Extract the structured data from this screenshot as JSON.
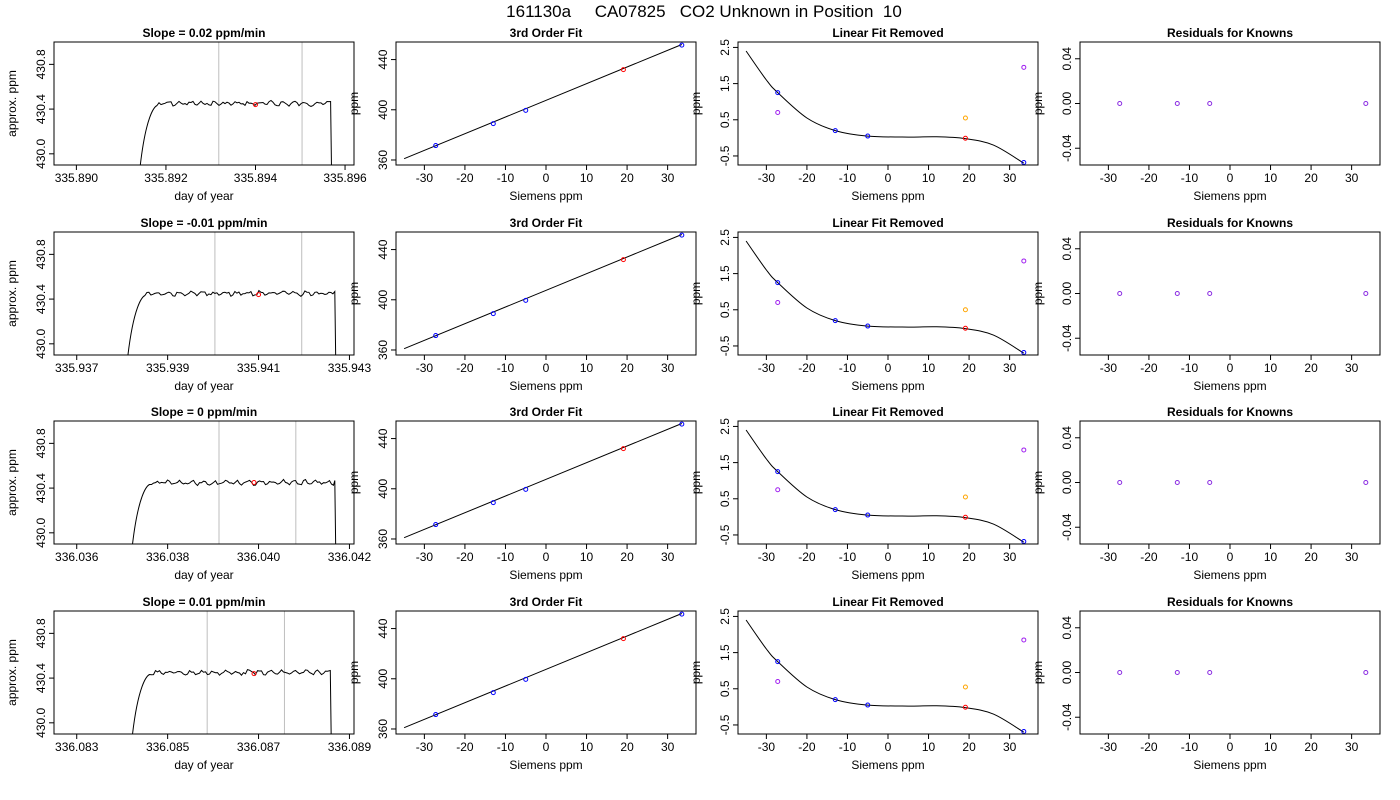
{
  "figure": {
    "title": "161130a     CA07825   CO2 Unknown in Position  10"
  },
  "colors": {
    "trace": "#000000",
    "frame": "#000000",
    "marker_lines": "#bebebe",
    "standard_points": "#0000ff",
    "unknown_point": "#ff0000",
    "linear_residual_points": "#a020f0",
    "unknown_residual_point": "#ffa500",
    "residual_points": "#8a2be2"
  },
  "chart_data": [
    {
      "type": "line",
      "row": 0,
      "col": 0,
      "title": "Slope =  0.02  ppm/min",
      "xlabel": "day of year",
      "ylabel": "approx. ppm",
      "xlim": [
        335.8895,
        335.8962
      ],
      "ylim": [
        429.9,
        431.0
      ],
      "xticks": [
        335.89,
        335.892,
        335.894,
        335.896
      ],
      "xtick_labels": [
        "335.890",
        "335.892",
        "335.894",
        "335.896"
      ],
      "yticks": [
        430.0,
        430.4,
        430.8
      ],
      "ytick_labels": [
        "430.0",
        "430.4",
        "430.8"
      ],
      "trace": {
        "start": 335.8914,
        "rise_end": 335.8918,
        "end": 335.8957,
        "base": 429.8,
        "level": 430.45
      },
      "vlines": [
        335.89318,
        335.89504
      ],
      "marker": {
        "x": 335.894,
        "y": 430.44
      }
    },
    {
      "type": "scatter",
      "row": 0,
      "col": 1,
      "title": "3rd Order Fit",
      "xlabel": "Siemens ppm",
      "ylabel": "ppm",
      "xlim": [
        -37,
        37
      ],
      "ylim": [
        356,
        454
      ],
      "xticks": [
        -30,
        -20,
        -10,
        0,
        10,
        20,
        30
      ],
      "yticks": [
        360,
        400,
        440
      ],
      "line": [
        [
          -35,
          361
        ],
        [
          33.5,
          452
        ]
      ],
      "standards": [
        [
          -27.2,
          371.5
        ],
        [
          -13.0,
          389.0
        ],
        [
          -5.0,
          399.5
        ],
        [
          33.5,
          451.5
        ]
      ],
      "unknown": [
        19.1,
        432.0
      ]
    },
    {
      "type": "scatter",
      "row": 0,
      "col": 2,
      "title": "Linear Fit Removed",
      "xlabel": "Siemens ppm",
      "ylabel": "ppm",
      "xlim": [
        -37,
        37
      ],
      "ylim": [
        -0.75,
        2.65
      ],
      "xticks": [
        -30,
        -20,
        -10,
        0,
        10,
        20,
        30
      ],
      "yticks": [
        -0.5,
        0.5,
        1.5,
        2.5
      ],
      "ytick_labels": [
        "-0.5",
        "0.5",
        "1.5",
        "2.5"
      ],
      "curve": [
        [
          -35,
          2.4
        ],
        [
          -30,
          1.6
        ],
        [
          -27.2,
          1.25
        ],
        [
          -20,
          0.55
        ],
        [
          -13,
          0.2
        ],
        [
          -5,
          0.05
        ],
        [
          5,
          0.02
        ],
        [
          12,
          0.03
        ],
        [
          19,
          -0.02
        ],
        [
          26,
          -0.2
        ],
        [
          33.5,
          -0.7
        ]
      ],
      "standards": [
        [
          -27.2,
          1.25
        ],
        [
          -13.0,
          0.2
        ],
        [
          -5.0,
          0.05
        ],
        [
          33.5,
          -0.68
        ]
      ],
      "unknown": [
        19.1,
        -0.01
      ],
      "linear_residuals": [
        [
          -27.2,
          0.7
        ],
        [
          33.5,
          1.95
        ]
      ],
      "unknown_linear": [
        19.1,
        0.55
      ]
    },
    {
      "type": "scatter",
      "row": 0,
      "col": 3,
      "title": "Residuals for Knowns",
      "xlabel": "Siemens ppm",
      "ylabel": "ppm",
      "xlim": [
        -37,
        37
      ],
      "ylim": [
        -0.055,
        0.055
      ],
      "xticks": [
        -30,
        -20,
        -10,
        0,
        10,
        20,
        30
      ],
      "yticks": [
        -0.04,
        0.0,
        0.04
      ],
      "ytick_labels": [
        "-0.04",
        "0.00",
        "0.04"
      ],
      "residuals": [
        [
          -27.2,
          0.0
        ],
        [
          -13.0,
          0.0
        ],
        [
          -5.0,
          0.0
        ],
        [
          33.5,
          0.0
        ]
      ]
    },
    {
      "type": "line",
      "row": 1,
      "col": 0,
      "title": "Slope =  -0.01  ppm/min",
      "xlabel": "day of year",
      "ylabel": "approx. ppm",
      "xlim": [
        335.9365,
        335.9431
      ],
      "ylim": [
        429.9,
        431.0
      ],
      "xticks": [
        335.937,
        335.939,
        335.941,
        335.943
      ],
      "xtick_labels": [
        "335.937",
        "335.939",
        "335.941",
        "335.943"
      ],
      "yticks": [
        430.0,
        430.4,
        430.8
      ],
      "ytick_labels": [
        "430.0",
        "430.4",
        "430.8"
      ],
      "trace": {
        "start": 335.9381,
        "rise_end": 335.9385,
        "end": 335.9427,
        "base": 429.8,
        "level": 430.45
      },
      "vlines": [
        335.94004,
        335.94195
      ],
      "marker": {
        "x": 335.941,
        "y": 430.44
      }
    },
    {
      "type": "scatter",
      "row": 1,
      "col": 1,
      "title": "3rd Order Fit",
      "xlabel": "Siemens ppm",
      "ylabel": "ppm",
      "xlim": [
        -37,
        37
      ],
      "ylim": [
        356,
        454
      ],
      "xticks": [
        -30,
        -20,
        -10,
        0,
        10,
        20,
        30
      ],
      "yticks": [
        360,
        400,
        440
      ],
      "line": [
        [
          -35,
          361
        ],
        [
          33.5,
          452
        ]
      ],
      "standards": [
        [
          -27.2,
          371.5
        ],
        [
          -13.0,
          389.0
        ],
        [
          -5.0,
          399.5
        ],
        [
          33.5,
          451.5
        ]
      ],
      "unknown": [
        19.1,
        432.0
      ]
    },
    {
      "type": "scatter",
      "row": 1,
      "col": 2,
      "title": "Linear Fit Removed",
      "xlabel": "Siemens ppm",
      "ylabel": "ppm",
      "xlim": [
        -37,
        37
      ],
      "ylim": [
        -0.75,
        2.65
      ],
      "xticks": [
        -30,
        -20,
        -10,
        0,
        10,
        20,
        30
      ],
      "yticks": [
        -0.5,
        0.5,
        1.5,
        2.5
      ],
      "ytick_labels": [
        "-0.5",
        "0.5",
        "1.5",
        "2.5"
      ],
      "curve": [
        [
          -35,
          2.4
        ],
        [
          -30,
          1.6
        ],
        [
          -27.2,
          1.25
        ],
        [
          -20,
          0.55
        ],
        [
          -13,
          0.2
        ],
        [
          -5,
          0.05
        ],
        [
          5,
          0.02
        ],
        [
          12,
          0.03
        ],
        [
          19,
          -0.02
        ],
        [
          26,
          -0.2
        ],
        [
          33.5,
          -0.7
        ]
      ],
      "standards": [
        [
          -27.2,
          1.25
        ],
        [
          -13.0,
          0.2
        ],
        [
          -5.0,
          0.05
        ],
        [
          33.5,
          -0.68
        ]
      ],
      "unknown": [
        19.1,
        -0.01
      ],
      "linear_residuals": [
        [
          -27.2,
          0.7
        ],
        [
          33.5,
          1.85
        ]
      ],
      "unknown_linear": [
        19.1,
        0.5
      ]
    },
    {
      "type": "scatter",
      "row": 1,
      "col": 3,
      "title": "Residuals for Knowns",
      "xlabel": "Siemens ppm",
      "ylabel": "ppm",
      "xlim": [
        -37,
        37
      ],
      "ylim": [
        -0.055,
        0.055
      ],
      "xticks": [
        -30,
        -20,
        -10,
        0,
        10,
        20,
        30
      ],
      "yticks": [
        -0.04,
        0.0,
        0.04
      ],
      "ytick_labels": [
        "-0.04",
        "0.00",
        "0.04"
      ],
      "residuals": [
        [
          -27.2,
          0.0
        ],
        [
          -13.0,
          0.0
        ],
        [
          -5.0,
          0.0
        ],
        [
          33.5,
          0.0
        ]
      ]
    },
    {
      "type": "line",
      "row": 2,
      "col": 0,
      "title": "Slope =  0  ppm/min",
      "xlabel": "day of year",
      "ylabel": "approx. ppm",
      "xlim": [
        336.0355,
        336.0421
      ],
      "ylim": [
        429.9,
        431.0
      ],
      "xticks": [
        336.036,
        336.038,
        336.04,
        336.042
      ],
      "xtick_labels": [
        "336.036",
        "336.038",
        "336.040",
        "336.042"
      ],
      "yticks": [
        430.0,
        430.4,
        430.8
      ],
      "ytick_labels": [
        "430.0",
        "430.4",
        "430.8"
      ],
      "trace": {
        "start": 336.0372,
        "rise_end": 336.0376,
        "end": 336.0417,
        "base": 429.8,
        "level": 430.45
      },
      "vlines": [
        336.03913,
        336.04082
      ],
      "marker": {
        "x": 336.0399,
        "y": 430.45
      }
    },
    {
      "type": "scatter",
      "row": 2,
      "col": 1,
      "title": "3rd Order Fit",
      "xlabel": "Siemens ppm",
      "ylabel": "ppm",
      "xlim": [
        -37,
        37
      ],
      "ylim": [
        356,
        454
      ],
      "xticks": [
        -30,
        -20,
        -10,
        0,
        10,
        20,
        30
      ],
      "yticks": [
        360,
        400,
        440
      ],
      "line": [
        [
          -35,
          361
        ],
        [
          33.5,
          452
        ]
      ],
      "standards": [
        [
          -27.2,
          371.5
        ],
        [
          -13.0,
          389.0
        ],
        [
          -5.0,
          399.5
        ],
        [
          33.5,
          451.5
        ]
      ],
      "unknown": [
        19.1,
        432.0
      ]
    },
    {
      "type": "scatter",
      "row": 2,
      "col": 2,
      "title": "Linear Fit Removed",
      "xlabel": "Siemens ppm",
      "ylabel": "ppm",
      "xlim": [
        -37,
        37
      ],
      "ylim": [
        -0.75,
        2.65
      ],
      "xticks": [
        -30,
        -20,
        -10,
        0,
        10,
        20,
        30
      ],
      "yticks": [
        -0.5,
        0.5,
        1.5,
        2.5
      ],
      "ytick_labels": [
        "-0.5",
        "0.5",
        "1.5",
        "2.5"
      ],
      "curve": [
        [
          -35,
          2.4
        ],
        [
          -30,
          1.6
        ],
        [
          -27.2,
          1.25
        ],
        [
          -20,
          0.55
        ],
        [
          -13,
          0.2
        ],
        [
          -5,
          0.05
        ],
        [
          5,
          0.02
        ],
        [
          12,
          0.03
        ],
        [
          19,
          -0.02
        ],
        [
          26,
          -0.2
        ],
        [
          33.5,
          -0.7
        ]
      ],
      "standards": [
        [
          -27.2,
          1.25
        ],
        [
          -13.0,
          0.2
        ],
        [
          -5.0,
          0.05
        ],
        [
          33.5,
          -0.68
        ]
      ],
      "unknown": [
        19.1,
        -0.01
      ],
      "linear_residuals": [
        [
          -27.2,
          0.75
        ],
        [
          33.5,
          1.85
        ]
      ],
      "unknown_linear": [
        19.1,
        0.55
      ]
    },
    {
      "type": "scatter",
      "row": 2,
      "col": 3,
      "title": "Residuals for Knowns",
      "xlabel": "Siemens ppm",
      "ylabel": "ppm",
      "xlim": [
        -37,
        37
      ],
      "ylim": [
        -0.055,
        0.055
      ],
      "xticks": [
        -30,
        -20,
        -10,
        0,
        10,
        20,
        30
      ],
      "yticks": [
        -0.04,
        0.0,
        0.04
      ],
      "ytick_labels": [
        "-0.04",
        "0.00",
        "0.04"
      ],
      "residuals": [
        [
          -27.2,
          0.0
        ],
        [
          -13.0,
          0.0
        ],
        [
          -5.0,
          0.0
        ],
        [
          33.5,
          0.0
        ]
      ]
    },
    {
      "type": "line",
      "row": 3,
      "col": 0,
      "title": "Slope =  0.01  ppm/min",
      "xlabel": "day of year",
      "ylabel": "approx. ppm",
      "xlim": [
        336.0825,
        336.0891
      ],
      "ylim": [
        429.9,
        431.0
      ],
      "xticks": [
        336.083,
        336.085,
        336.087,
        336.089
      ],
      "xtick_labels": [
        "336.083",
        "336.085",
        "336.087",
        "336.089"
      ],
      "yticks": [
        430.0,
        430.4,
        430.8
      ],
      "ytick_labels": [
        "430.0",
        "430.4",
        "430.8"
      ],
      "trace": {
        "start": 336.0842,
        "rise_end": 336.0846,
        "end": 336.0886,
        "base": 429.8,
        "level": 430.45
      },
      "vlines": [
        336.08587,
        336.08757
      ],
      "marker": {
        "x": 336.0869,
        "y": 430.44
      }
    },
    {
      "type": "scatter",
      "row": 3,
      "col": 1,
      "title": "3rd Order Fit",
      "xlabel": "Siemens ppm",
      "ylabel": "ppm",
      "xlim": [
        -37,
        37
      ],
      "ylim": [
        356,
        454
      ],
      "xticks": [
        -30,
        -20,
        -10,
        0,
        10,
        20,
        30
      ],
      "yticks": [
        360,
        400,
        440
      ],
      "line": [
        [
          -35,
          361
        ],
        [
          33.5,
          452
        ]
      ],
      "standards": [
        [
          -27.2,
          371.5
        ],
        [
          -13.0,
          389.0
        ],
        [
          -5.0,
          399.5
        ],
        [
          33.5,
          451.5
        ]
      ],
      "unknown": [
        19.1,
        432.0
      ]
    },
    {
      "type": "scatter",
      "row": 3,
      "col": 2,
      "title": "Linear Fit Removed",
      "xlabel": "Siemens ppm",
      "ylabel": "ppm",
      "xlim": [
        -37,
        37
      ],
      "ylim": [
        -0.75,
        2.65
      ],
      "xticks": [
        -30,
        -20,
        -10,
        0,
        10,
        20,
        30
      ],
      "yticks": [
        -0.5,
        0.5,
        1.5,
        2.5
      ],
      "ytick_labels": [
        "-0.5",
        "0.5",
        "1.5",
        "2.5"
      ],
      "curve": [
        [
          -35,
          2.4
        ],
        [
          -30,
          1.6
        ],
        [
          -27.2,
          1.25
        ],
        [
          -20,
          0.55
        ],
        [
          -13,
          0.2
        ],
        [
          -5,
          0.05
        ],
        [
          5,
          0.02
        ],
        [
          12,
          0.03
        ],
        [
          19,
          -0.02
        ],
        [
          26,
          -0.2
        ],
        [
          33.5,
          -0.7
        ]
      ],
      "standards": [
        [
          -27.2,
          1.25
        ],
        [
          -13.0,
          0.2
        ],
        [
          -5.0,
          0.05
        ],
        [
          33.5,
          -0.68
        ]
      ],
      "unknown": [
        19.1,
        -0.01
      ],
      "linear_residuals": [
        [
          -27.2,
          0.7
        ],
        [
          33.5,
          1.85
        ]
      ],
      "unknown_linear": [
        19.1,
        0.55
      ]
    },
    {
      "type": "scatter",
      "row": 3,
      "col": 3,
      "title": "Residuals for Knowns",
      "xlabel": "Siemens ppm",
      "ylabel": "ppm",
      "xlim": [
        -37,
        37
      ],
      "ylim": [
        -0.055,
        0.055
      ],
      "xticks": [
        -30,
        -20,
        -10,
        0,
        10,
        20,
        30
      ],
      "yticks": [
        -0.04,
        0.0,
        0.04
      ],
      "ytick_labels": [
        "-0.04",
        "0.00",
        "0.04"
      ],
      "residuals": [
        [
          -27.2,
          0.0
        ],
        [
          -13.0,
          0.0
        ],
        [
          -5.0,
          0.0
        ],
        [
          33.5,
          0.0
        ]
      ]
    }
  ]
}
